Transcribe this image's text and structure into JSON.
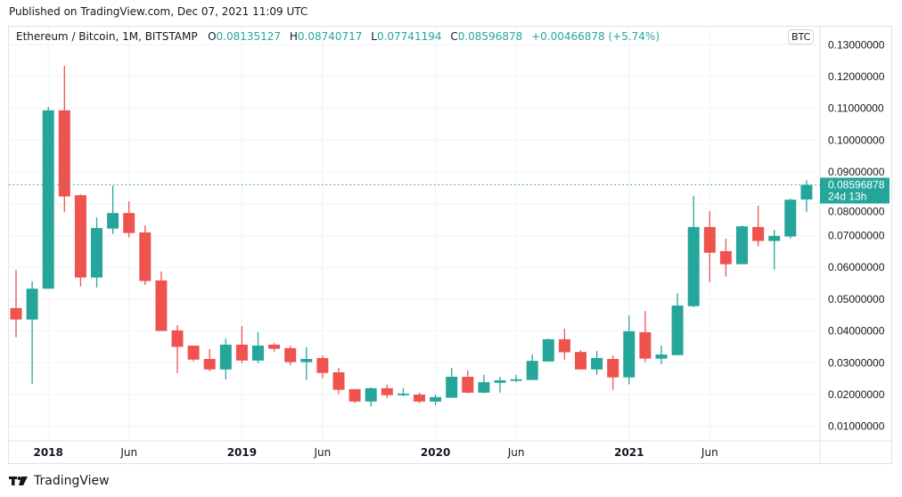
{
  "published": "Published on TradingView.com, Dec 07, 2021 11:09 UTC",
  "legend": {
    "symbol": "Ethereum / Bitcoin, 1M, BITSTAMP",
    "o_label": "O",
    "o": "0.08135127",
    "h_label": "H",
    "h": "0.08740717",
    "l_label": "L",
    "l": "0.07741194",
    "c_label": "C",
    "c": "0.08596878",
    "change": "+0.00466878 (+5.74%)"
  },
  "currency_badge": "BTC",
  "last_price": {
    "value": "0.08596878",
    "countdown": "24d 13h"
  },
  "footer_brand": "TradingView",
  "colors": {
    "up": "#26a69a",
    "down": "#ef5350",
    "grid": "#f0f3fa",
    "axis_text": "#131722"
  },
  "chart_data": {
    "type": "candlestick",
    "interval": "1M",
    "y_axis_ticks": [
      "0.13000000",
      "0.12000000",
      "0.11000000",
      "0.10000000",
      "0.09000000",
      "0.08000000",
      "0.07000000",
      "0.06000000",
      "0.05000000",
      "0.04000000",
      "0.03000000",
      "0.02000000",
      "0.01000000"
    ],
    "y_tick_values": [
      0.13,
      0.12,
      0.11,
      0.1,
      0.09,
      0.08,
      0.07,
      0.06,
      0.05,
      0.04,
      0.03,
      0.02,
      0.01
    ],
    "ylim": [
      0.005,
      0.135
    ],
    "x_axis_ticks": [
      {
        "label": "2018",
        "month": "2018-01",
        "bold": true
      },
      {
        "label": "Jun",
        "month": "2018-06",
        "bold": false
      },
      {
        "label": "2019",
        "month": "2019-01",
        "bold": true
      },
      {
        "label": "Jun",
        "month": "2019-06",
        "bold": false
      },
      {
        "label": "2020",
        "month": "2020-01",
        "bold": true
      },
      {
        "label": "Jun",
        "month": "2020-06",
        "bold": false
      },
      {
        "label": "2021",
        "month": "2021-01",
        "bold": true
      },
      {
        "label": "Jun",
        "month": "2021-06",
        "bold": false
      }
    ],
    "grid": true,
    "candles": [
      {
        "month": "2017-11",
        "o": 0.0472,
        "h": 0.0592,
        "l": 0.038,
        "c": 0.0436
      },
      {
        "month": "2017-12",
        "o": 0.0436,
        "h": 0.0556,
        "l": 0.0234,
        "c": 0.0533
      },
      {
        "month": "2018-01",
        "o": 0.0533,
        "h": 0.1105,
        "l": 0.0533,
        "c": 0.1094
      },
      {
        "month": "2018-02",
        "o": 0.1094,
        "h": 0.1234,
        "l": 0.0775,
        "c": 0.0823
      },
      {
        "month": "2018-03",
        "o": 0.0827,
        "h": 0.083,
        "l": 0.054,
        "c": 0.0568
      },
      {
        "month": "2018-04",
        "o": 0.0568,
        "h": 0.0757,
        "l": 0.0537,
        "c": 0.0724
      },
      {
        "month": "2018-05",
        "o": 0.0722,
        "h": 0.0857,
        "l": 0.0705,
        "c": 0.0771
      },
      {
        "month": "2018-06",
        "o": 0.0771,
        "h": 0.0808,
        "l": 0.0694,
        "c": 0.0708
      },
      {
        "month": "2018-07",
        "o": 0.071,
        "h": 0.0732,
        "l": 0.0545,
        "c": 0.0557
      },
      {
        "month": "2018-08",
        "o": 0.0559,
        "h": 0.0587,
        "l": 0.04,
        "c": 0.04
      },
      {
        "month": "2018-09",
        "o": 0.0402,
        "h": 0.0418,
        "l": 0.0268,
        "c": 0.035
      },
      {
        "month": "2018-10",
        "o": 0.0354,
        "h": 0.0354,
        "l": 0.0304,
        "c": 0.031
      },
      {
        "month": "2018-11",
        "o": 0.0312,
        "h": 0.0343,
        "l": 0.0274,
        "c": 0.0279
      },
      {
        "month": "2018-12",
        "o": 0.0279,
        "h": 0.0376,
        "l": 0.0248,
        "c": 0.0357
      },
      {
        "month": "2019-01",
        "o": 0.0357,
        "h": 0.0416,
        "l": 0.0299,
        "c": 0.0307
      },
      {
        "month": "2019-02",
        "o": 0.0307,
        "h": 0.0396,
        "l": 0.0299,
        "c": 0.0354
      },
      {
        "month": "2019-03",
        "o": 0.0357,
        "h": 0.0362,
        "l": 0.0335,
        "c": 0.0344
      },
      {
        "month": "2019-04",
        "o": 0.0346,
        "h": 0.0354,
        "l": 0.0293,
        "c": 0.0302
      },
      {
        "month": "2019-05",
        "o": 0.0302,
        "h": 0.0349,
        "l": 0.0246,
        "c": 0.0312
      },
      {
        "month": "2019-06",
        "o": 0.0315,
        "h": 0.0323,
        "l": 0.0251,
        "c": 0.0268
      },
      {
        "month": "2019-07",
        "o": 0.027,
        "h": 0.0284,
        "l": 0.0201,
        "c": 0.0215
      },
      {
        "month": "2019-08",
        "o": 0.0217,
        "h": 0.0217,
        "l": 0.0173,
        "c": 0.0178
      },
      {
        "month": "2019-09",
        "o": 0.0178,
        "h": 0.0222,
        "l": 0.0162,
        "c": 0.022
      },
      {
        "month": "2019-10",
        "o": 0.022,
        "h": 0.0231,
        "l": 0.019,
        "c": 0.0198
      },
      {
        "month": "2019-11",
        "o": 0.0198,
        "h": 0.022,
        "l": 0.0195,
        "c": 0.0203
      },
      {
        "month": "2019-12",
        "o": 0.02,
        "h": 0.0206,
        "l": 0.0173,
        "c": 0.0178
      },
      {
        "month": "2020-01",
        "o": 0.0178,
        "h": 0.02,
        "l": 0.0167,
        "c": 0.0192
      },
      {
        "month": "2020-02",
        "o": 0.019,
        "h": 0.0284,
        "l": 0.019,
        "c": 0.0256
      },
      {
        "month": "2020-03",
        "o": 0.0256,
        "h": 0.0276,
        "l": 0.0204,
        "c": 0.0206
      },
      {
        "month": "2020-04",
        "o": 0.0206,
        "h": 0.0262,
        "l": 0.0204,
        "c": 0.0239
      },
      {
        "month": "2020-05",
        "o": 0.0237,
        "h": 0.0256,
        "l": 0.0206,
        "c": 0.0245
      },
      {
        "month": "2020-06",
        "o": 0.0243,
        "h": 0.0262,
        "l": 0.024,
        "c": 0.0248
      },
      {
        "month": "2020-07",
        "o": 0.0246,
        "h": 0.0326,
        "l": 0.0246,
        "c": 0.0306
      },
      {
        "month": "2020-08",
        "o": 0.0304,
        "h": 0.0376,
        "l": 0.0304,
        "c": 0.0374
      },
      {
        "month": "2020-09",
        "o": 0.0374,
        "h": 0.0407,
        "l": 0.031,
        "c": 0.0333
      },
      {
        "month": "2020-10",
        "o": 0.0334,
        "h": 0.034,
        "l": 0.0279,
        "c": 0.0279
      },
      {
        "month": "2020-11",
        "o": 0.0279,
        "h": 0.0337,
        "l": 0.0262,
        "c": 0.0315
      },
      {
        "month": "2020-12",
        "o": 0.0312,
        "h": 0.0323,
        "l": 0.0215,
        "c": 0.0254
      },
      {
        "month": "2021-01",
        "o": 0.0254,
        "h": 0.0449,
        "l": 0.0232,
        "c": 0.0399
      },
      {
        "month": "2021-02",
        "o": 0.0396,
        "h": 0.0463,
        "l": 0.0302,
        "c": 0.0313
      },
      {
        "month": "2021-03",
        "o": 0.0313,
        "h": 0.0354,
        "l": 0.0296,
        "c": 0.0326
      },
      {
        "month": "2021-04",
        "o": 0.0324,
        "h": 0.0519,
        "l": 0.0324,
        "c": 0.048
      },
      {
        "month": "2021-05",
        "o": 0.0478,
        "h": 0.0825,
        "l": 0.0475,
        "c": 0.0727
      },
      {
        "month": "2021-06",
        "o": 0.0727,
        "h": 0.0777,
        "l": 0.0554,
        "c": 0.0646
      },
      {
        "month": "2021-07",
        "o": 0.0651,
        "h": 0.069,
        "l": 0.0571,
        "c": 0.061
      },
      {
        "month": "2021-08",
        "o": 0.061,
        "h": 0.0732,
        "l": 0.061,
        "c": 0.0729
      },
      {
        "month": "2021-09",
        "o": 0.0727,
        "h": 0.0794,
        "l": 0.0666,
        "c": 0.0683
      },
      {
        "month": "2021-10",
        "o": 0.0683,
        "h": 0.0718,
        "l": 0.0593,
        "c": 0.0699
      },
      {
        "month": "2021-11",
        "o": 0.0697,
        "h": 0.0816,
        "l": 0.0691,
        "c": 0.0813
      },
      {
        "month": "2021-12",
        "o": 0.08135127,
        "h": 0.08740717,
        "l": 0.07741194,
        "c": 0.08596878
      }
    ],
    "last_price_line": 0.08596878
  }
}
